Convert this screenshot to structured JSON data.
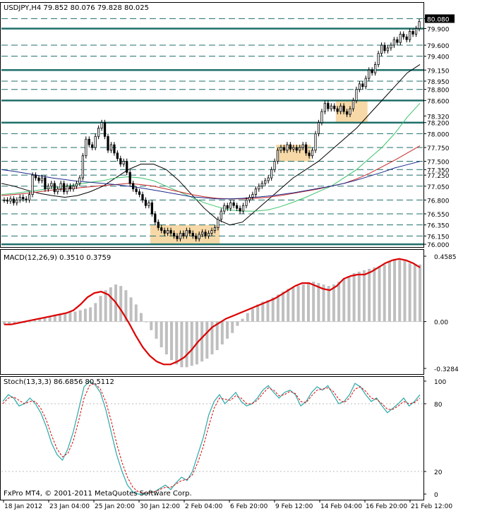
{
  "header": {
    "symbol_line": "USDJPY,H4  79.852 80.076 79.828 80.025",
    "macd_label": "MACD(12,26,9) 0.3510 0.3759",
    "stoch_label": "Stoch(13,3,3) 86.6856 80.5112",
    "copyright": "FxPro MT4, © 2001-2011 MetaQuotes Software Corp."
  },
  "colors": {
    "background": "#ffffff",
    "candle": "#000000",
    "level_line": "#1f6f6a",
    "zone_fill": "#f7d9a8",
    "macd_hist": "#bfbfbf",
    "macd_signal": "#dd0000",
    "stoch_main": "#2aa7a7",
    "stoch_signal": "#dd0000",
    "ma_black": "#000000",
    "ma_green": "#3cc36a",
    "ma_red": "#c62828",
    "ma_navy": "#1a2a8a",
    "current_price_box": "#000000"
  },
  "chart_data": [
    {
      "type": "candlestick",
      "name": "price",
      "title": "USDJPY,H4",
      "ohlc_last": {
        "open": 79.852,
        "high": 80.076,
        "low": 79.828,
        "close": 80.025
      },
      "ylim": [
        75.95,
        80.2
      ],
      "price_labels": [
        "80.080",
        "79.900",
        "79.600",
        "79.400",
        "79.150",
        "78.950",
        "78.800",
        "78.600",
        "78.320",
        "78.200",
        "78.000",
        "77.750",
        "77.500",
        "77.350",
        "77.250",
        "77.050",
        "76.800",
        "76.550",
        "76.350",
        "76.150",
        "76.000"
      ],
      "level_lines_solid": [
        79.9,
        79.15,
        78.6,
        78.2,
        76.0
      ],
      "level_lines_dashed": [
        80.08,
        79.6,
        79.4,
        78.95,
        78.8,
        78.0,
        77.75,
        77.5,
        77.35,
        77.25,
        77.05,
        76.8,
        76.55,
        76.35,
        76.15
      ],
      "current_price": "80.080",
      "x_labels": [
        "18 Jan 2012",
        "23 Jan 04:00",
        "25 Jan 20:00",
        "30 Jan 12:00",
        "2 Feb 04:00",
        "6 Feb 20:00",
        "9 Feb 12:00",
        "14 Feb 04:00",
        "16 Feb 20:00",
        "21 Feb 12:00"
      ],
      "closes": [
        76.8,
        76.78,
        76.82,
        76.75,
        76.8,
        76.85,
        76.82,
        76.8,
        76.9,
        77.25,
        77.2,
        77.15,
        77.2,
        77.0,
        77.05,
        77.1,
        76.95,
        77.0,
        77.1,
        76.95,
        77.05,
        77.0,
        77.05,
        77.1,
        77.2,
        77.6,
        77.9,
        77.8,
        77.75,
        77.95,
        78.1,
        78.2,
        77.95,
        77.7,
        77.8,
        77.65,
        77.55,
        77.45,
        77.5,
        77.3,
        77.1,
        77.0,
        76.95,
        76.9,
        76.8,
        76.7,
        76.75,
        76.55,
        76.4,
        76.3,
        76.25,
        76.2,
        76.25,
        76.2,
        76.15,
        76.1,
        76.2,
        76.15,
        76.25,
        76.2,
        76.15,
        76.1,
        76.18,
        76.22,
        76.15,
        76.2,
        76.25,
        76.3,
        76.45,
        76.6,
        76.7,
        76.65,
        76.75,
        76.7,
        76.65,
        76.6,
        76.7,
        76.8,
        76.85,
        76.9,
        77.0,
        77.05,
        77.1,
        77.15,
        77.2,
        77.35,
        77.5,
        77.7,
        77.75,
        77.7,
        77.8,
        77.72,
        77.75,
        77.7,
        77.75,
        77.8,
        77.65,
        77.6,
        77.7,
        78.0,
        78.2,
        78.4,
        78.55,
        78.45,
        78.5,
        78.45,
        78.4,
        78.5,
        78.4,
        78.35,
        78.45,
        78.6,
        78.8,
        78.9,
        78.85,
        79.0,
        79.15,
        79.1,
        79.25,
        79.45,
        79.6,
        79.5,
        79.55,
        79.6,
        79.7,
        79.65,
        79.8,
        79.75,
        79.7,
        79.85,
        79.8,
        79.9,
        80.025
      ],
      "zones": [
        {
          "from_bar": 47,
          "to_bar": 68,
          "y_low": 76.0,
          "y_high": 76.35
        },
        {
          "from_bar": 87,
          "to_bar": 97,
          "y_low": 77.5,
          "y_high": 77.8
        },
        {
          "from_bar": 106,
          "to_bar": 115,
          "y_low": 78.2,
          "y_high": 78.6
        }
      ],
      "moving_averages": [
        {
          "color": "black",
          "values": [
            77.1,
            77.05,
            76.98,
            76.92,
            76.88,
            76.85,
            76.88,
            76.95,
            77.05,
            77.2,
            77.35,
            77.45,
            77.45,
            77.35,
            77.15,
            76.9,
            76.65,
            76.45,
            76.35,
            76.4,
            76.6,
            76.8,
            77.0,
            77.2,
            77.35,
            77.5,
            77.7,
            77.9,
            78.1,
            78.35,
            78.6,
            78.85,
            79.1,
            79.25
          ]
        },
        {
          "color": "green",
          "values": [
            76.9,
            76.92,
            76.95,
            76.98,
            77.02,
            77.05,
            77.08,
            77.12,
            77.15,
            77.2,
            77.22,
            77.2,
            77.15,
            77.05,
            76.95,
            76.85,
            76.75,
            76.68,
            76.62,
            76.6,
            76.6,
            76.62,
            76.68,
            76.76,
            76.85,
            76.95,
            77.05,
            77.2,
            77.35,
            77.55,
            77.75,
            78.0,
            78.3,
            78.55
          ]
        },
        {
          "color": "red",
          "values": [
            76.88,
            76.9,
            76.92,
            76.95,
            76.98,
            77.0,
            77.02,
            77.04,
            77.06,
            77.08,
            77.1,
            77.08,
            77.05,
            77.0,
            76.95,
            76.9,
            76.86,
            76.83,
            76.82,
            76.82,
            76.83,
            76.85,
            76.88,
            76.92,
            76.96,
            77.0,
            77.05,
            77.1,
            77.18,
            77.28,
            77.4,
            77.52,
            77.65,
            77.78
          ]
        },
        {
          "color": "navy",
          "values": [
            77.35,
            77.32,
            77.28,
            77.24,
            77.2,
            77.17,
            77.14,
            77.12,
            77.1,
            77.08,
            77.05,
            77.02,
            76.98,
            76.94,
            76.9,
            76.86,
            76.84,
            76.82,
            76.82,
            76.83,
            76.85,
            76.87,
            76.9,
            76.93,
            76.97,
            77.01,
            77.05,
            77.1,
            77.16,
            77.23,
            77.3,
            77.38,
            77.44,
            77.5
          ]
        }
      ]
    },
    {
      "type": "bar",
      "name": "MACD(12,26,9)",
      "y_labels": [
        "0.4585",
        "0.00",
        "-0.3284"
      ],
      "ylim": [
        -0.3284,
        0.4585
      ],
      "histogram": [
        -0.02,
        -0.02,
        -0.01,
        -0.01,
        -0.01,
        0.0,
        0.01,
        0.02,
        0.03,
        0.04,
        0.05,
        0.05,
        0.06,
        0.07,
        0.07,
        0.08,
        0.09,
        0.1,
        0.13,
        0.18,
        0.22,
        0.24,
        0.26,
        0.25,
        0.22,
        0.17,
        0.12,
        0.06,
        0.0,
        -0.06,
        -0.12,
        -0.18,
        -0.23,
        -0.27,
        -0.3,
        -0.32,
        -0.32,
        -0.31,
        -0.3,
        -0.28,
        -0.26,
        -0.23,
        -0.2,
        -0.16,
        -0.12,
        -0.08,
        -0.03,
        0.02,
        0.06,
        0.09,
        0.12,
        0.14,
        0.15,
        0.17,
        0.19,
        0.21,
        0.23,
        0.24,
        0.25,
        0.26,
        0.27,
        0.28,
        0.27,
        0.26,
        0.25,
        0.26,
        0.28,
        0.3,
        0.32,
        0.34,
        0.35,
        0.36,
        0.37,
        0.38,
        0.39,
        0.4,
        0.42,
        0.44,
        0.44,
        0.43,
        0.41,
        0.4,
        0.4
      ],
      "signal": [
        -0.02,
        -0.02,
        -0.01,
        0.0,
        0.01,
        0.02,
        0.03,
        0.04,
        0.05,
        0.06,
        0.08,
        0.12,
        0.17,
        0.2,
        0.21,
        0.19,
        0.14,
        0.07,
        -0.01,
        -0.1,
        -0.18,
        -0.24,
        -0.28,
        -0.3,
        -0.3,
        -0.28,
        -0.25,
        -0.2,
        -0.14,
        -0.09,
        -0.04,
        -0.01,
        0.02,
        0.04,
        0.06,
        0.08,
        0.1,
        0.12,
        0.14,
        0.16,
        0.19,
        0.22,
        0.25,
        0.27,
        0.27,
        0.25,
        0.23,
        0.22,
        0.25,
        0.3,
        0.32,
        0.33,
        0.33,
        0.35,
        0.38,
        0.41,
        0.43,
        0.44,
        0.43,
        0.41,
        0.38
      ]
    },
    {
      "type": "line",
      "name": "Stoch(13,3,3)",
      "y_labels": [
        "100",
        "80",
        "20",
        "0"
      ],
      "ylim": [
        0,
        100
      ],
      "main": [
        82,
        88,
        85,
        78,
        80,
        85,
        80,
        72,
        60,
        45,
        35,
        30,
        40,
        55,
        75,
        95,
        100,
        97,
        90,
        75,
        55,
        35,
        20,
        8,
        2,
        0,
        0,
        1,
        2,
        5,
        8,
        4,
        10,
        15,
        12,
        20,
        35,
        50,
        70,
        82,
        88,
        80,
        85,
        90,
        82,
        78,
        80,
        85,
        92,
        96,
        90,
        85,
        90,
        92,
        88,
        78,
        82,
        90,
        95,
        92,
        96,
        88,
        80,
        82,
        88,
        98,
        95,
        88,
        82,
        85,
        78,
        72,
        76,
        80,
        85,
        78,
        82,
        88
      ],
      "signal": [
        80,
        85,
        86,
        83,
        80,
        82,
        82,
        76,
        66,
        52,
        40,
        33,
        36,
        47,
        65,
        85,
        96,
        98,
        93,
        82,
        65,
        45,
        28,
        15,
        6,
        2,
        1,
        1,
        2,
        4,
        6,
        6,
        9,
        12,
        13,
        17,
        28,
        42,
        60,
        76,
        85,
        84,
        83,
        87,
        85,
        80,
        80,
        83,
        89,
        94,
        92,
        87,
        88,
        91,
        89,
        82,
        81,
        87,
        92,
        93,
        94,
        91,
        84,
        81,
        85,
        93,
        95,
        91,
        85,
        84,
        80,
        75,
        75,
        78,
        82,
        80,
        81,
        85
      ]
    }
  ]
}
